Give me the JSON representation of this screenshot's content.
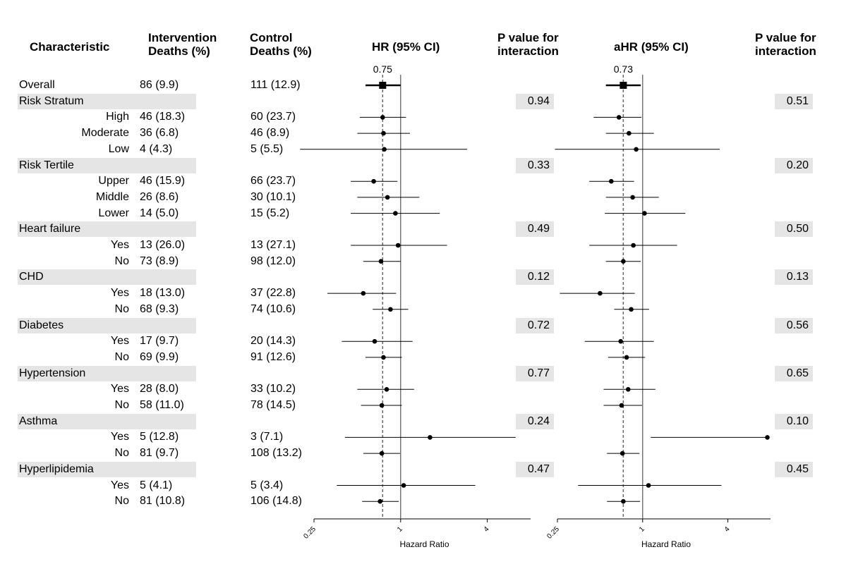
{
  "headers": {
    "characteristic": "Characteristic",
    "intervention_1": "Intervention",
    "intervention_2": "Deaths (%)",
    "control_1": "Control",
    "control_2": "Deaths (%)",
    "hr": "HR (95% CI)",
    "p1_1": "P value for",
    "p1_2": "interaction",
    "ahr": "aHR (95% CI)",
    "p2_1": "P value for",
    "p2_2": "interaction"
  },
  "rows": [
    {
      "label": "Overall",
      "kind": "overall",
      "intervention": "86 (9.9)",
      "control": "111 (12.9)"
    },
    {
      "label": "Risk Stratum",
      "kind": "group",
      "p_hr": "0.94",
      "p_ahr": "0.51"
    },
    {
      "label": "High",
      "kind": "sub",
      "intervention": "46 (18.3)",
      "control": "60 (23.7)"
    },
    {
      "label": "Moderate",
      "kind": "sub",
      "intervention": "36 (6.8)",
      "control": "46 (8.9)"
    },
    {
      "label": "Low",
      "kind": "sub",
      "intervention": "4 (4.3)",
      "control": "5 (5.5)"
    },
    {
      "label": "Risk Tertile",
      "kind": "group",
      "p_hr": "0.33",
      "p_ahr": "0.20"
    },
    {
      "label": "Upper",
      "kind": "sub",
      "intervention": "46 (15.9)",
      "control": "66 (23.7)"
    },
    {
      "label": "Middle",
      "kind": "sub",
      "intervention": "26 (8.6)",
      "control": "30 (10.1)"
    },
    {
      "label": "Lower",
      "kind": "sub",
      "intervention": "14 (5.0)",
      "control": "15 (5.2)"
    },
    {
      "label": "Heart failure",
      "kind": "group",
      "p_hr": "0.49",
      "p_ahr": "0.50"
    },
    {
      "label": "Yes",
      "kind": "sub",
      "intervention": "13 (26.0)",
      "control": "13 (27.1)"
    },
    {
      "label": "No",
      "kind": "sub",
      "intervention": "73 (8.9)",
      "control": "98 (12.0)"
    },
    {
      "label": "CHD",
      "kind": "group",
      "p_hr": "0.12",
      "p_ahr": "0.13"
    },
    {
      "label": "Yes",
      "kind": "sub",
      "intervention": "18 (13.0)",
      "control": "37 (22.8)"
    },
    {
      "label": "No",
      "kind": "sub",
      "intervention": "68 (9.3)",
      "control": "74 (10.6)"
    },
    {
      "label": "Diabetes",
      "kind": "group",
      "p_hr": "0.72",
      "p_ahr": "0.56"
    },
    {
      "label": "Yes",
      "kind": "sub",
      "intervention": "17 (9.7)",
      "control": "20 (14.3)"
    },
    {
      "label": "No",
      "kind": "sub",
      "intervention": "69 (9.9)",
      "control": "91 (12.6)"
    },
    {
      "label": "Hypertension",
      "kind": "group",
      "p_hr": "0.77",
      "p_ahr": "0.65"
    },
    {
      "label": "Yes",
      "kind": "sub",
      "intervention": "28 (8.0)",
      "control": "33 (10.2)"
    },
    {
      "label": "No",
      "kind": "sub",
      "intervention": "58 (11.0)",
      "control": "78 (14.5)"
    },
    {
      "label": "Asthma",
      "kind": "group",
      "p_hr": "0.24",
      "p_ahr": "0.10"
    },
    {
      "label": "Yes",
      "kind": "sub",
      "intervention": "5 (12.8)",
      "control": "3 (7.1)"
    },
    {
      "label": "No",
      "kind": "sub",
      "intervention": "81 (9.7)",
      "control": "108 (13.2)"
    },
    {
      "label": "Hyperlipidemia",
      "kind": "group",
      "p_hr": "0.47",
      "p_ahr": "0.45"
    },
    {
      "label": "Yes",
      "kind": "sub",
      "intervention": "5 (4.1)",
      "control": "5 (3.4)"
    },
    {
      "label": "No",
      "kind": "sub",
      "intervention": "81 (10.8)",
      "control": "106 (14.8)"
    }
  ],
  "chart_data": [
    {
      "type": "forest",
      "title": "HR (95% CI)",
      "xlabel": "Hazard Ratio",
      "x_scale": "log2",
      "xlim": [
        0.25,
        8
      ],
      "xticks": [
        0.25,
        1,
        4
      ],
      "xtick_labels": [
        "0.25",
        "1",
        "4"
      ],
      "reference_line": 1,
      "overall_estimate_line": 0.75,
      "overall_label": "0.75",
      "points": [
        {
          "row": 0,
          "est": 0.75,
          "lo": 0.57,
          "hi": 1.0
        },
        {
          "row": 2,
          "est": 0.75,
          "lo": 0.52,
          "hi": 1.09
        },
        {
          "row": 3,
          "est": 0.76,
          "lo": 0.5,
          "hi": 1.16
        },
        {
          "row": 4,
          "est": 0.77,
          "lo": 0.2,
          "hi": 2.9
        },
        {
          "row": 6,
          "est": 0.65,
          "lo": 0.45,
          "hi": 0.95
        },
        {
          "row": 7,
          "est": 0.81,
          "lo": 0.5,
          "hi": 1.35
        },
        {
          "row": 8,
          "est": 0.92,
          "lo": 0.45,
          "hi": 1.87
        },
        {
          "row": 10,
          "est": 0.96,
          "lo": 0.45,
          "hi": 2.1
        },
        {
          "row": 11,
          "est": 0.73,
          "lo": 0.55,
          "hi": 1.0
        },
        {
          "row": 13,
          "est": 0.55,
          "lo": 0.31,
          "hi": 0.93
        },
        {
          "row": 14,
          "est": 0.85,
          "lo": 0.64,
          "hi": 1.13
        },
        {
          "row": 16,
          "est": 0.66,
          "lo": 0.39,
          "hi": 1.21
        },
        {
          "row": 17,
          "est": 0.76,
          "lo": 0.57,
          "hi": 1.02
        },
        {
          "row": 19,
          "est": 0.8,
          "lo": 0.5,
          "hi": 1.24
        },
        {
          "row": 20,
          "est": 0.74,
          "lo": 0.53,
          "hi": 1.02
        },
        {
          "row": 22,
          "est": 1.6,
          "lo": 0.41,
          "hi": 6.3
        },
        {
          "row": 23,
          "est": 0.74,
          "lo": 0.55,
          "hi": 0.99
        },
        {
          "row": 25,
          "est": 1.05,
          "lo": 0.36,
          "hi": 3.3
        },
        {
          "row": 26,
          "est": 0.72,
          "lo": 0.54,
          "hi": 0.97
        }
      ]
    },
    {
      "type": "forest",
      "title": "aHR (95% CI)",
      "xlabel": "Hazard Ratio",
      "x_scale": "log2",
      "xlim": [
        0.25,
        8
      ],
      "xticks": [
        0.25,
        1,
        4
      ],
      "xtick_labels": [
        "0.25",
        "1",
        "4"
      ],
      "reference_line": 1,
      "overall_estimate_line": 0.73,
      "overall_label": "0.73",
      "points": [
        {
          "row": 0,
          "est": 0.73,
          "lo": 0.55,
          "hi": 0.97
        },
        {
          "row": 2,
          "est": 0.68,
          "lo": 0.45,
          "hi": 0.98
        },
        {
          "row": 3,
          "est": 0.8,
          "lo": 0.55,
          "hi": 1.2
        },
        {
          "row": 4,
          "est": 0.9,
          "lo": 0.24,
          "hi": 3.5
        },
        {
          "row": 6,
          "est": 0.6,
          "lo": 0.42,
          "hi": 0.87
        },
        {
          "row": 7,
          "est": 0.85,
          "lo": 0.55,
          "hi": 1.3
        },
        {
          "row": 8,
          "est": 1.03,
          "lo": 0.54,
          "hi": 2.0
        },
        {
          "row": 10,
          "est": 0.86,
          "lo": 0.42,
          "hi": 1.75
        },
        {
          "row": 11,
          "est": 0.73,
          "lo": 0.55,
          "hi": 0.97
        },
        {
          "row": 13,
          "est": 0.5,
          "lo": 0.26,
          "hi": 0.88
        },
        {
          "row": 14,
          "est": 0.83,
          "lo": 0.63,
          "hi": 1.11
        },
        {
          "row": 16,
          "est": 0.7,
          "lo": 0.39,
          "hi": 1.2
        },
        {
          "row": 17,
          "est": 0.77,
          "lo": 0.57,
          "hi": 1.04
        },
        {
          "row": 19,
          "est": 0.79,
          "lo": 0.53,
          "hi": 1.23
        },
        {
          "row": 20,
          "est": 0.71,
          "lo": 0.53,
          "hi": 0.99
        },
        {
          "row": 22,
          "est": 7.6,
          "lo": 1.14,
          "hi": 7.6
        },
        {
          "row": 23,
          "est": 0.72,
          "lo": 0.56,
          "hi": 0.95
        },
        {
          "row": 25,
          "est": 1.1,
          "lo": 0.35,
          "hi": 3.6
        },
        {
          "row": 26,
          "est": 0.73,
          "lo": 0.56,
          "hi": 0.96
        }
      ]
    }
  ]
}
